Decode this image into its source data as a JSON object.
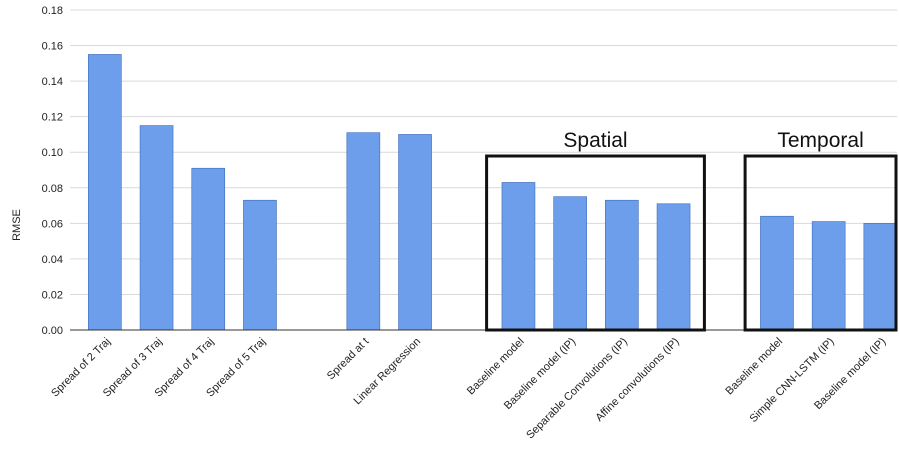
{
  "chart_data": {
    "type": "bar",
    "ylabel": "RMSE",
    "ylim": [
      0,
      0.18
    ],
    "yticks": [
      "0.00",
      "0.02",
      "0.04",
      "0.06",
      "0.08",
      "0.10",
      "0.12",
      "0.14",
      "0.16",
      "0.18"
    ],
    "grid": true,
    "bar_color": "#6d9eeb",
    "categories": [
      "Spread of 2 Traj",
      "Spread of 3 Traj",
      "Spread of 4 Traj",
      "Spread of 5 Traj",
      "",
      "Spread at t",
      "Linear Regression",
      "",
      "Baseline model",
      "Baseline model (IP)",
      "Separable Convolutions (IP)",
      "Affine convolutions (IP)",
      "",
      "Baseline model",
      "Simple CNN-LSTM (IP)",
      "Baseline model (IP)"
    ],
    "values": [
      0.155,
      0.115,
      0.091,
      0.073,
      null,
      0.111,
      0.11,
      null,
      0.083,
      0.075,
      0.073,
      0.071,
      null,
      0.064,
      0.061,
      0.06
    ],
    "annotations": [
      {
        "label": "Spatial",
        "from_category": 8,
        "to_category": 11
      },
      {
        "label": "Temporal",
        "from_category": 13,
        "to_category": 15
      }
    ]
  }
}
